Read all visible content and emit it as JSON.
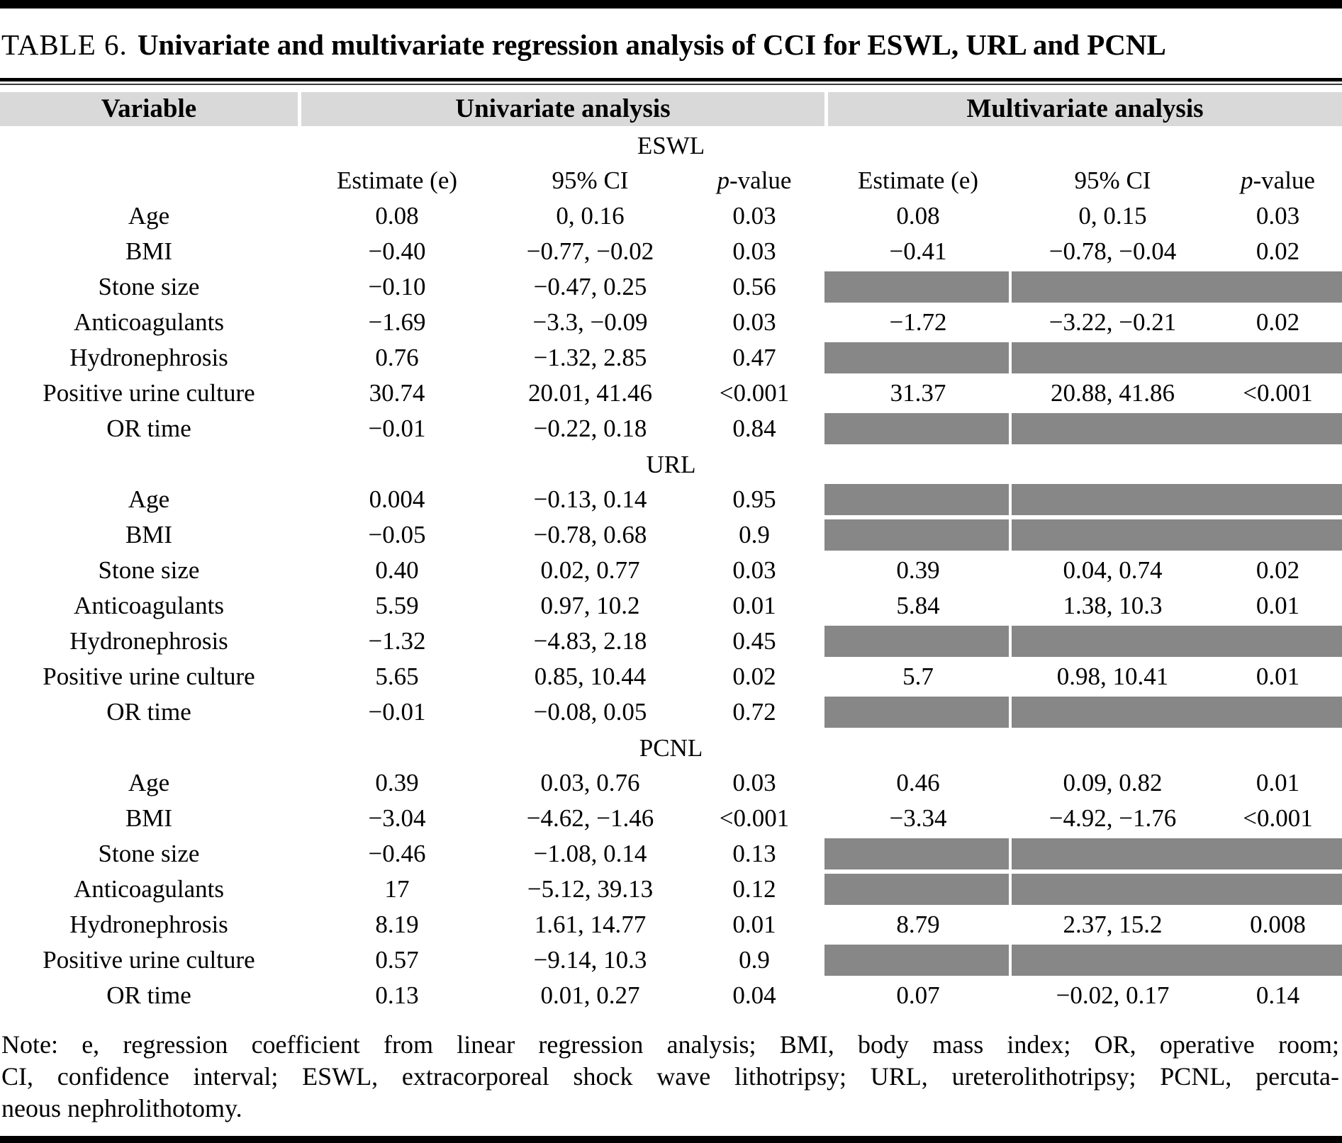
{
  "colors": {
    "header_band": "#d9d9d9",
    "mask": "#878787",
    "rule": "#000000"
  },
  "title": {
    "label": "TABLE 6.",
    "text": "Univariate and multivariate regression analysis of CCI for ESWL, URL and PCNL"
  },
  "column_groups": {
    "variable": "Variable",
    "univariate": "Univariate analysis",
    "multivariate": "Multivariate analysis"
  },
  "subheaders": {
    "estimate": "Estimate (e)",
    "ci": "95% CI",
    "p_italic": "p",
    "p_rest": "-value"
  },
  "sections": [
    {
      "name": "ESWL",
      "rows": [
        {
          "variable": "Age",
          "uni": {
            "est": "0.08",
            "ci": "0, 0.16",
            "p": "0.03"
          },
          "multi": {
            "est": "0.08",
            "ci": "0, 0.15",
            "p": "0.03"
          }
        },
        {
          "variable": "BMI",
          "uni": {
            "est": "−0.40",
            "ci": "−0.77, −0.02",
            "p": "0.03"
          },
          "multi": {
            "est": "−0.41",
            "ci": "−0.78, −0.04",
            "p": "0.02"
          }
        },
        {
          "variable": "Stone size",
          "uni": {
            "est": "−0.10",
            "ci": "−0.47, 0.25",
            "p": "0.56"
          },
          "multi": null
        },
        {
          "variable": "Anticoagulants",
          "uni": {
            "est": "−1.69",
            "ci": "−3.3, −0.09",
            "p": "0.03"
          },
          "multi": {
            "est": "−1.72",
            "ci": "−3.22, −0.21",
            "p": "0.02"
          }
        },
        {
          "variable": "Hydronephrosis",
          "uni": {
            "est": "0.76",
            "ci": "−1.32, 2.85",
            "p": "0.47"
          },
          "multi": null
        },
        {
          "variable": "Positive urine culture",
          "uni": {
            "est": "30.74",
            "ci": "20.01, 41.46",
            "p": "<0.001"
          },
          "multi": {
            "est": "31.37",
            "ci": "20.88, 41.86",
            "p": "<0.001"
          }
        },
        {
          "variable": "OR time",
          "uni": {
            "est": "−0.01",
            "ci": "−0.22, 0.18",
            "p": "0.84"
          },
          "multi": null
        }
      ]
    },
    {
      "name": "URL",
      "rows": [
        {
          "variable": "Age",
          "uni": {
            "est": "0.004",
            "ci": "−0.13, 0.14",
            "p": "0.95"
          },
          "multi": null
        },
        {
          "variable": "BMI",
          "uni": {
            "est": "−0.05",
            "ci": "−0.78, 0.68",
            "p": "0.9"
          },
          "multi": null
        },
        {
          "variable": "Stone size",
          "uni": {
            "est": "0.40",
            "ci": "0.02, 0.77",
            "p": "0.03"
          },
          "multi": {
            "est": "0.39",
            "ci": "0.04, 0.74",
            "p": "0.02"
          }
        },
        {
          "variable": "Anticoagulants",
          "uni": {
            "est": "5.59",
            "ci": "0.97, 10.2",
            "p": "0.01"
          },
          "multi": {
            "est": "5.84",
            "ci": "1.38, 10.3",
            "p": "0.01"
          }
        },
        {
          "variable": "Hydronephrosis",
          "uni": {
            "est": "−1.32",
            "ci": "−4.83, 2.18",
            "p": "0.45"
          },
          "multi": null
        },
        {
          "variable": "Positive urine culture",
          "uni": {
            "est": "5.65",
            "ci": "0.85, 10.44",
            "p": "0.02"
          },
          "multi": {
            "est": "5.7",
            "ci": "0.98, 10.41",
            "p": "0.01"
          }
        },
        {
          "variable": "OR time",
          "uni": {
            "est": "−0.01",
            "ci": "−0.08, 0.05",
            "p": "0.72"
          },
          "multi": null
        }
      ]
    },
    {
      "name": "PCNL",
      "rows": [
        {
          "variable": "Age",
          "uni": {
            "est": "0.39",
            "ci": "0.03, 0.76",
            "p": "0.03"
          },
          "multi": {
            "est": "0.46",
            "ci": "0.09, 0.82",
            "p": "0.01"
          }
        },
        {
          "variable": "BMI",
          "uni": {
            "est": "−3.04",
            "ci": "−4.62, −1.46",
            "p": "<0.001"
          },
          "multi": {
            "est": "−3.34",
            "ci": "−4.92, −1.76",
            "p": "<0.001"
          }
        },
        {
          "variable": "Stone size",
          "uni": {
            "est": "−0.46",
            "ci": "−1.08, 0.14",
            "p": "0.13"
          },
          "multi": null
        },
        {
          "variable": "Anticoagulants",
          "uni": {
            "est": "17",
            "ci": "−5.12, 39.13",
            "p": "0.12"
          },
          "multi": null
        },
        {
          "variable": "Hydronephrosis",
          "uni": {
            "est": "8.19",
            "ci": "1.61, 14.77",
            "p": "0.01"
          },
          "multi": {
            "est": "8.79",
            "ci": "2.37, 15.2",
            "p": "0.008"
          }
        },
        {
          "variable": "Positive urine culture",
          "uni": {
            "est": "0.57",
            "ci": "−9.14, 10.3",
            "p": "0.9"
          },
          "multi": null
        },
        {
          "variable": "OR time",
          "uni": {
            "est": "0.13",
            "ci": "0.01, 0.27",
            "p": "0.04"
          },
          "multi": {
            "est": "0.07",
            "ci": "−0.02, 0.17",
            "p": "0.14"
          }
        }
      ]
    }
  ],
  "note_lines": [
    "Note: e, regression coefficient from linear regression analysis; BMI, body mass index; OR, operative room;",
    "CI, confidence interval; ESWL, extracorporeal shock wave lithotripsy; URL, ureterolithotripsy; PCNL, percuta-",
    "neous nephrolithotomy."
  ]
}
